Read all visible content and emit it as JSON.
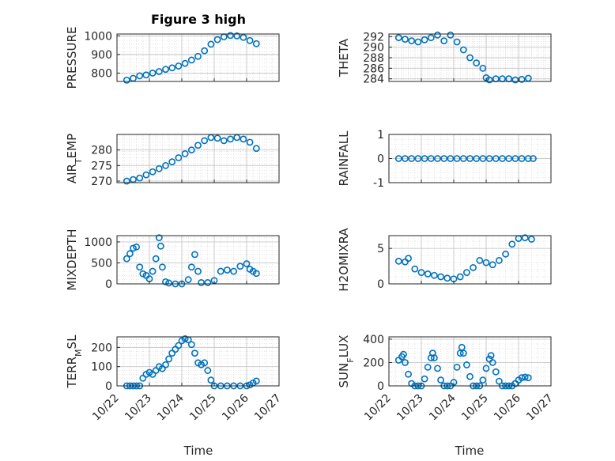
{
  "figure": {
    "title": "Figure 3 high",
    "xlabel": "Time",
    "marker_color": "#0072BD",
    "date_ticks": [
      "10/22",
      "10/23",
      "10/24",
      "10/25",
      "10/26",
      "10/27"
    ]
  },
  "chart_data": [
    {
      "type": "scatter",
      "ylabel": "PRESSURE",
      "xlim": [
        22,
        27
      ],
      "ylim": [
        755,
        1010
      ],
      "yticks": [
        800,
        900,
        1000
      ],
      "ytick_labels": [
        "800",
        "900",
        "1000"
      ],
      "points": [
        [
          22.3,
          762
        ],
        [
          22.5,
          772
        ],
        [
          22.7,
          785
        ],
        [
          22.9,
          790
        ],
        [
          23.1,
          800
        ],
        [
          23.3,
          808
        ],
        [
          23.5,
          820
        ],
        [
          23.7,
          828
        ],
        [
          23.9,
          838
        ],
        [
          24.1,
          852
        ],
        [
          24.3,
          870
        ],
        [
          24.5,
          890
        ],
        [
          24.7,
          920
        ],
        [
          24.9,
          955
        ],
        [
          25.1,
          980
        ],
        [
          25.3,
          995
        ],
        [
          25.5,
          1002
        ],
        [
          25.7,
          1000
        ],
        [
          25.9,
          992
        ],
        [
          26.1,
          975
        ],
        [
          26.3,
          958
        ]
      ]
    },
    {
      "type": "scatter",
      "ylabel": "THETA",
      "xlim": [
        22,
        27
      ],
      "ylim": [
        283.5,
        292.5
      ],
      "yticks": [
        284,
        286,
        288,
        290,
        292
      ],
      "ytick_labels": [
        "284",
        "286",
        "288",
        "290",
        "292"
      ],
      "points": [
        [
          22.3,
          291.8
        ],
        [
          22.5,
          291.5
        ],
        [
          22.7,
          291.2
        ],
        [
          22.9,
          291
        ],
        [
          23.1,
          291.4
        ],
        [
          23.3,
          291.8
        ],
        [
          23.5,
          292.3
        ],
        [
          23.7,
          291.2
        ],
        [
          23.9,
          292.3
        ],
        [
          24.1,
          291
        ],
        [
          24.3,
          289.5
        ],
        [
          24.5,
          288
        ],
        [
          24.7,
          287
        ],
        [
          24.9,
          286
        ],
        [
          25.0,
          284.2
        ],
        [
          25.1,
          283.8
        ],
        [
          25.3,
          284
        ],
        [
          25.5,
          284
        ],
        [
          25.7,
          284
        ],
        [
          25.9,
          283.8
        ],
        [
          26.1,
          283.9
        ],
        [
          26.3,
          284.1
        ]
      ]
    },
    {
      "type": "scatter",
      "ylabel": "AIR_TEMP",
      "xlim": [
        22,
        27
      ],
      "ylim": [
        269.5,
        285
      ],
      "yticks": [
        270,
        275,
        280
      ],
      "ytick_labels": [
        "270",
        "275",
        "280"
      ],
      "points": [
        [
          22.3,
          270
        ],
        [
          22.5,
          270.5
        ],
        [
          22.7,
          271
        ],
        [
          22.9,
          272
        ],
        [
          23.1,
          273
        ],
        [
          23.3,
          274
        ],
        [
          23.5,
          275
        ],
        [
          23.7,
          276.2
        ],
        [
          23.9,
          277.5
        ],
        [
          24.1,
          278.8
        ],
        [
          24.3,
          280
        ],
        [
          24.5,
          281.5
        ],
        [
          24.7,
          283
        ],
        [
          24.9,
          284
        ],
        [
          25.1,
          283.8
        ],
        [
          25.3,
          283
        ],
        [
          25.5,
          283.5
        ],
        [
          25.7,
          284
        ],
        [
          25.9,
          283.5
        ],
        [
          26.1,
          282.5
        ],
        [
          26.3,
          280.5
        ]
      ]
    },
    {
      "type": "scatter",
      "ylabel": "RAINFALL",
      "xlim": [
        22,
        27
      ],
      "ylim": [
        -1,
        1
      ],
      "yticks": [
        -1,
        0,
        1
      ],
      "ytick_labels": [
        "-1",
        "0",
        "1"
      ],
      "points": [
        [
          22.3,
          0
        ],
        [
          22.5,
          0
        ],
        [
          22.7,
          0
        ],
        [
          22.9,
          0
        ],
        [
          23.1,
          0
        ],
        [
          23.3,
          0
        ],
        [
          23.5,
          0
        ],
        [
          23.7,
          0
        ],
        [
          23.9,
          0
        ],
        [
          24.1,
          0
        ],
        [
          24.3,
          0
        ],
        [
          24.5,
          0
        ],
        [
          24.7,
          0
        ],
        [
          24.9,
          0
        ],
        [
          25.1,
          0
        ],
        [
          25.3,
          0
        ],
        [
          25.5,
          0
        ],
        [
          25.7,
          0
        ],
        [
          25.9,
          0
        ],
        [
          26.1,
          0
        ],
        [
          26.3,
          0
        ],
        [
          26.45,
          0
        ]
      ]
    },
    {
      "type": "scatter",
      "ylabel": "MIXDEPTH",
      "xlim": [
        22,
        27
      ],
      "ylim": [
        0,
        1150
      ],
      "yticks": [
        0,
        500,
        1000
      ],
      "ytick_labels": [
        "0",
        "500",
        "1000"
      ],
      "points": [
        [
          22.3,
          600
        ],
        [
          22.4,
          720
        ],
        [
          22.5,
          850
        ],
        [
          22.6,
          880
        ],
        [
          22.7,
          400
        ],
        [
          22.8,
          240
        ],
        [
          22.9,
          200
        ],
        [
          23.0,
          120
        ],
        [
          23.1,
          300
        ],
        [
          23.2,
          600
        ],
        [
          23.3,
          1100
        ],
        [
          23.35,
          900
        ],
        [
          23.4,
          400
        ],
        [
          23.5,
          50
        ],
        [
          23.6,
          20
        ],
        [
          23.8,
          0
        ],
        [
          24.0,
          0
        ],
        [
          24.2,
          100
        ],
        [
          24.3,
          400
        ],
        [
          24.4,
          700
        ],
        [
          24.5,
          300
        ],
        [
          24.6,
          30
        ],
        [
          24.8,
          30
        ],
        [
          25.0,
          80
        ],
        [
          25.2,
          300
        ],
        [
          25.4,
          330
        ],
        [
          25.6,
          300
        ],
        [
          25.8,
          420
        ],
        [
          26.0,
          480
        ],
        [
          26.1,
          350
        ],
        [
          26.2,
          300
        ],
        [
          26.3,
          250
        ]
      ]
    },
    {
      "type": "scatter",
      "ylabel": "H2OMIXRA",
      "xlim": [
        22,
        27
      ],
      "ylim": [
        0,
        6.8
      ],
      "yticks": [
        0,
        5
      ],
      "ytick_labels": [
        "0",
        "5"
      ],
      "points": [
        [
          22.3,
          3.2
        ],
        [
          22.5,
          3.1
        ],
        [
          22.6,
          3.6
        ],
        [
          22.8,
          2.1
        ],
        [
          23.0,
          1.6
        ],
        [
          23.2,
          1.4
        ],
        [
          23.4,
          1.2
        ],
        [
          23.6,
          1
        ],
        [
          23.8,
          0.8
        ],
        [
          24.0,
          0.7
        ],
        [
          24.2,
          1.0
        ],
        [
          24.4,
          1.6
        ],
        [
          24.6,
          2.3
        ],
        [
          24.8,
          3.3
        ],
        [
          25.0,
          3.0
        ],
        [
          25.2,
          2.7
        ],
        [
          25.4,
          3.3
        ],
        [
          25.6,
          4.2
        ],
        [
          25.8,
          5.6
        ],
        [
          26.0,
          6.4
        ],
        [
          26.2,
          6.5
        ],
        [
          26.4,
          6.3
        ]
      ]
    },
    {
      "type": "scatter",
      "ylabel": "TERR_MSL",
      "xlim": [
        22,
        27
      ],
      "ylim": [
        0,
        255
      ],
      "yticks": [
        0,
        100,
        200
      ],
      "ytick_labels": [
        "0",
        "100",
        "200"
      ],
      "points": [
        [
          22.3,
          0
        ],
        [
          22.4,
          0
        ],
        [
          22.5,
          0
        ],
        [
          22.6,
          0
        ],
        [
          22.7,
          0
        ],
        [
          22.8,
          40
        ],
        [
          22.9,
          60
        ],
        [
          23.0,
          70
        ],
        [
          23.1,
          60
        ],
        [
          23.2,
          80
        ],
        [
          23.3,
          100
        ],
        [
          23.4,
          90
        ],
        [
          23.5,
          110
        ],
        [
          23.6,
          140
        ],
        [
          23.7,
          170
        ],
        [
          23.8,
          190
        ],
        [
          23.9,
          210
        ],
        [
          24.0,
          235
        ],
        [
          24.1,
          245
        ],
        [
          24.2,
          240
        ],
        [
          24.3,
          215
        ],
        [
          24.4,
          170
        ],
        [
          24.5,
          120
        ],
        [
          24.6,
          110
        ],
        [
          24.7,
          120
        ],
        [
          24.8,
          80
        ],
        [
          24.9,
          30
        ],
        [
          25.0,
          0
        ],
        [
          25.2,
          0
        ],
        [
          25.4,
          0
        ],
        [
          25.6,
          0
        ],
        [
          25.8,
          0
        ],
        [
          26.0,
          0
        ],
        [
          26.1,
          5
        ],
        [
          26.2,
          15
        ],
        [
          26.3,
          25
        ]
      ]
    },
    {
      "type": "scatter",
      "ylabel": "SUN_FLUX",
      "xlim": [
        22,
        27
      ],
      "ylim": [
        0,
        420
      ],
      "yticks": [
        0,
        200,
        400
      ],
      "ytick_labels": [
        "0",
        "200",
        "400"
      ],
      "points": [
        [
          22.3,
          220
        ],
        [
          22.4,
          250
        ],
        [
          22.45,
          270
        ],
        [
          22.5,
          200
        ],
        [
          22.6,
          100
        ],
        [
          22.7,
          20
        ],
        [
          22.8,
          0
        ],
        [
          22.9,
          0
        ],
        [
          23.0,
          0
        ],
        [
          23.1,
          60
        ],
        [
          23.2,
          160
        ],
        [
          23.3,
          240
        ],
        [
          23.35,
          280
        ],
        [
          23.4,
          240
        ],
        [
          23.5,
          150
        ],
        [
          23.6,
          50
        ],
        [
          23.7,
          0
        ],
        [
          23.8,
          0
        ],
        [
          23.9,
          0
        ],
        [
          24.0,
          30
        ],
        [
          24.1,
          160
        ],
        [
          24.2,
          280
        ],
        [
          24.25,
          330
        ],
        [
          24.3,
          280
        ],
        [
          24.4,
          180
        ],
        [
          24.5,
          80
        ],
        [
          24.6,
          0
        ],
        [
          24.7,
          0
        ],
        [
          24.8,
          0
        ],
        [
          24.9,
          50
        ],
        [
          25.0,
          150
        ],
        [
          25.1,
          230
        ],
        [
          25.15,
          260
        ],
        [
          25.2,
          200
        ],
        [
          25.3,
          120
        ],
        [
          25.4,
          40
        ],
        [
          25.5,
          0
        ],
        [
          25.6,
          0
        ],
        [
          25.7,
          0
        ],
        [
          25.8,
          0
        ],
        [
          25.9,
          20
        ],
        [
          26.0,
          50
        ],
        [
          26.1,
          70
        ],
        [
          26.2,
          75
        ],
        [
          26.3,
          70
        ]
      ]
    }
  ]
}
